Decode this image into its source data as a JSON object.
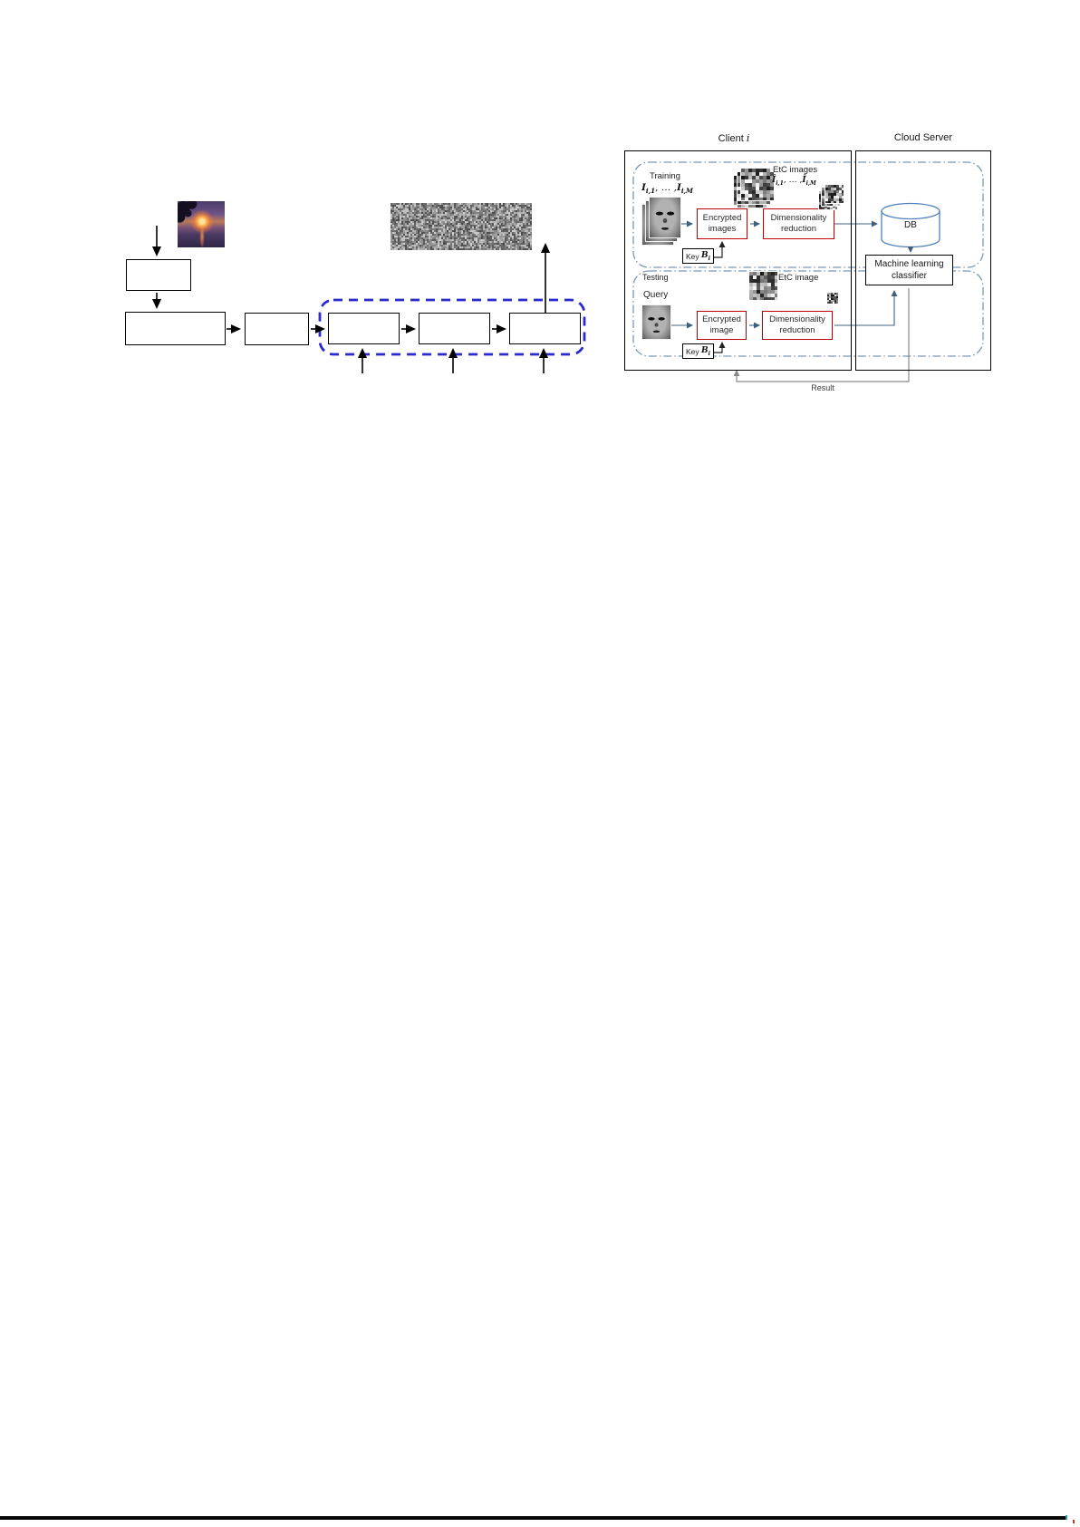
{
  "figure_right": {
    "client_title_prefix": "Client ",
    "client_title_var": "i",
    "cloud_title": "Cloud Server",
    "training": {
      "section_label": "Training",
      "math": {
        "s1": "I",
        "sub1": "i,1",
        "mid": ", … ,",
        "s2": "I",
        "sub2": "i,M"
      },
      "encrypted_label": "Encrypted images",
      "dimred_label": "Dimensionality reduction",
      "key_prefix": "Key ",
      "key_sym": "B",
      "key_sub": "i",
      "etc_label": "EtC images",
      "etc_math": {
        "s1": "Î",
        "sub1": "i,1",
        "mid": ", … ,",
        "s2": "Î",
        "sub2": "i,M"
      }
    },
    "testing": {
      "section_label": "Testing",
      "query_label": "Query",
      "encrypted_label": "Encrypted image",
      "dimred_label": "Dimensionality reduction",
      "key_prefix": "Key ",
      "key_sym": "B",
      "key_sub": "i",
      "etc_label": "EtC image"
    },
    "cloud": {
      "db_label": "DB",
      "classifier_label": "Machine learning classifier"
    },
    "result_label": "Result"
  },
  "figure_left": {
    "note": "flow diagram boxes are empty in source image",
    "icons": [
      "sunset-photo",
      "encrypted-noise-image"
    ]
  },
  "colors": {
    "red_box_border": "#c00000",
    "blue_dashed_region": "#2a2ad0",
    "dashdot_region": "#7a99b4",
    "slate_arrow": "#3f607f",
    "db_cylinder": "#4f81bd",
    "result_line": "#8a8a8a",
    "box_border": "#000000"
  }
}
